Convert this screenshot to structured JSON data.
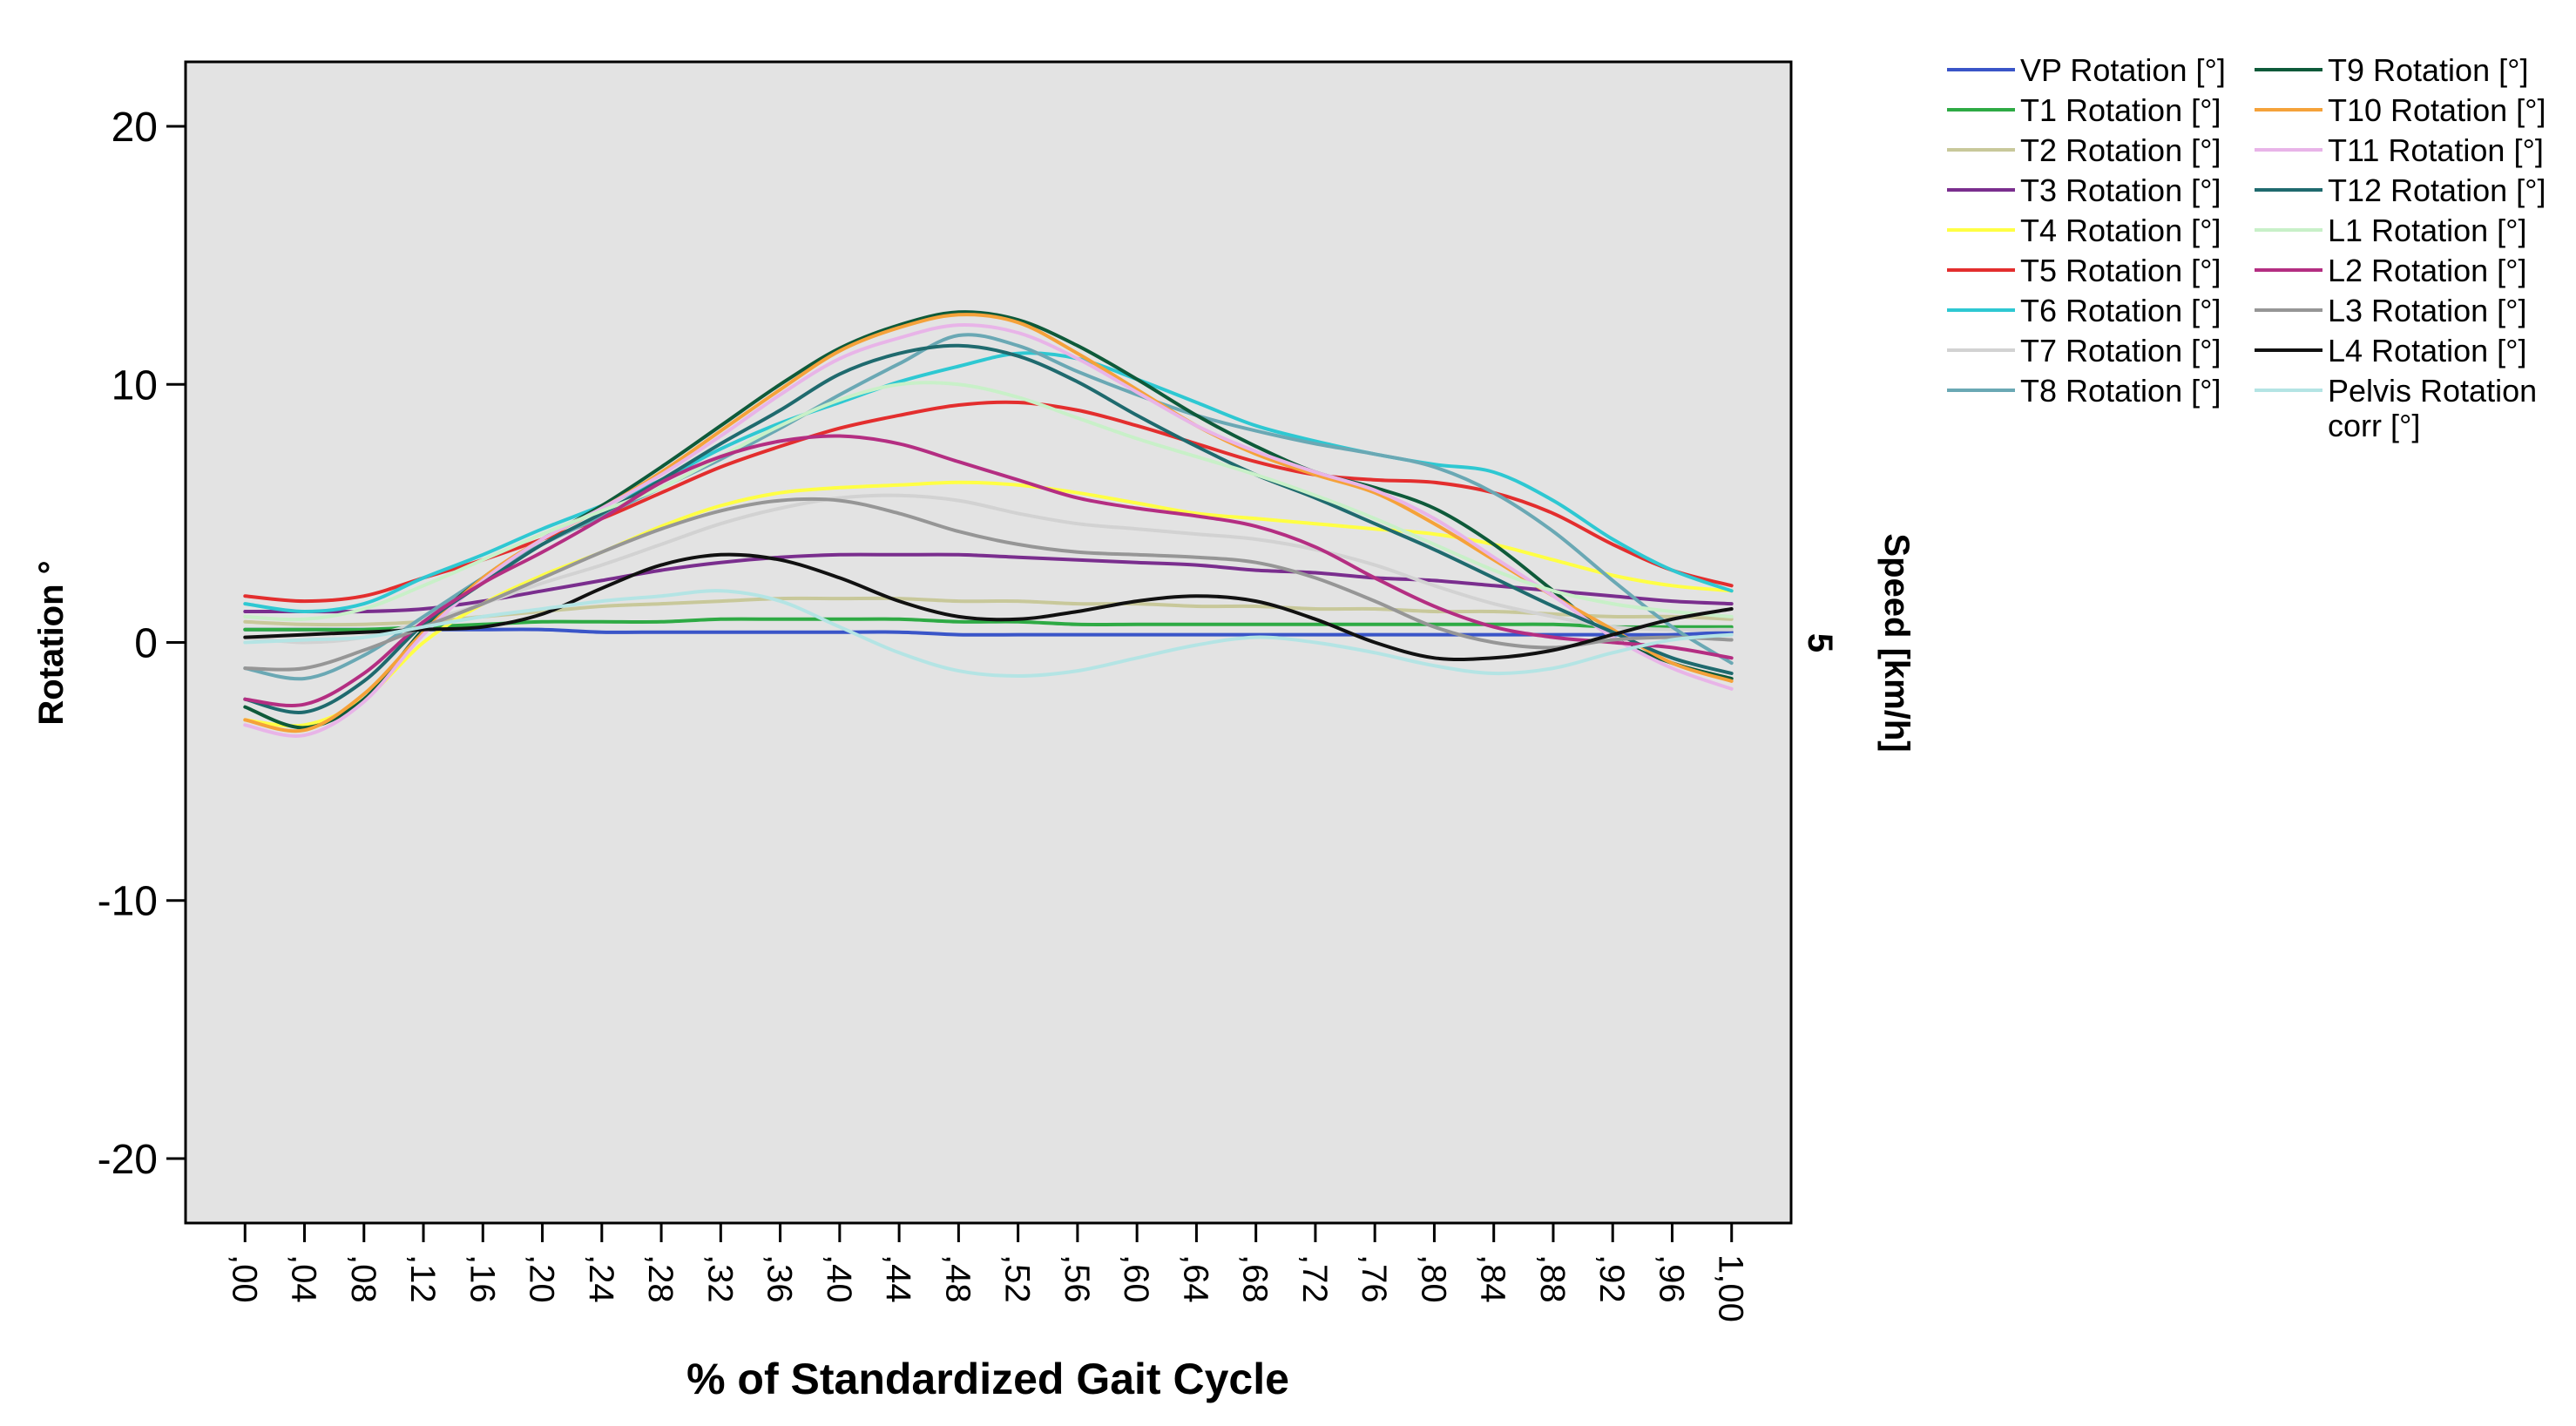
{
  "chart_data": {
    "type": "line",
    "title": "",
    "xlabel": "% of Standardized Gait Cycle",
    "ylabel": "Rotation °",
    "right_label": "Speed [km/h]",
    "right_value": "5",
    "xlim": [
      -0.04,
      1.04
    ],
    "ylim": [
      -22.5,
      22.5
    ],
    "yticks": [
      20,
      10,
      0,
      -10,
      -20
    ],
    "ytick_labels": [
      "20",
      "10",
      "0",
      "-10",
      "-20"
    ],
    "xticks": [
      0,
      0.04,
      0.08,
      0.12,
      0.16,
      0.2,
      0.24,
      0.28,
      0.32,
      0.36,
      0.4,
      0.44,
      0.48,
      0.52,
      0.56,
      0.6,
      0.64,
      0.68,
      0.72,
      0.76,
      0.8,
      0.84,
      0.88,
      0.92,
      0.96,
      1.0
    ],
    "xtick_labels": [
      ",00",
      ",04",
      ",08",
      ",12",
      ",16",
      ",20",
      ",24",
      ",28",
      ",32",
      ",36",
      ",40",
      ",44",
      ",48",
      ",52",
      ",56",
      ",60",
      ",64",
      ",68",
      ",72",
      ",76",
      ",80",
      ",84",
      ",88",
      ",92",
      ",96",
      "1,00"
    ],
    "plot_background": "#e3e3e3",
    "grid": false,
    "legend_position": "right",
    "x": [
      0,
      0.04,
      0.08,
      0.12,
      0.16,
      0.2,
      0.24,
      0.28,
      0.32,
      0.36,
      0.4,
      0.44,
      0.48,
      0.52,
      0.56,
      0.6,
      0.64,
      0.68,
      0.72,
      0.76,
      0.8,
      0.84,
      0.88,
      0.92,
      0.96,
      1.0
    ],
    "series": [
      {
        "name": "VP Rotation [°]",
        "color": "#3a55c8",
        "values": [
          0.5,
          0.5,
          0.5,
          0.5,
          0.5,
          0.5,
          0.4,
          0.4,
          0.4,
          0.4,
          0.4,
          0.4,
          0.3,
          0.3,
          0.3,
          0.3,
          0.3,
          0.3,
          0.3,
          0.3,
          0.3,
          0.3,
          0.3,
          0.3,
          0.3,
          0.4
        ]
      },
      {
        "name": "T1 Rotation [°]",
        "color": "#2eaa44",
        "values": [
          0.5,
          0.5,
          0.5,
          0.6,
          0.7,
          0.8,
          0.8,
          0.8,
          0.9,
          0.9,
          0.9,
          0.9,
          0.8,
          0.8,
          0.7,
          0.7,
          0.7,
          0.7,
          0.7,
          0.7,
          0.7,
          0.7,
          0.7,
          0.6,
          0.6,
          0.6
        ]
      },
      {
        "name": "T2 Rotation [°]",
        "color": "#c8c89a",
        "values": [
          0.8,
          0.7,
          0.7,
          0.8,
          1.0,
          1.2,
          1.4,
          1.5,
          1.6,
          1.7,
          1.7,
          1.7,
          1.6,
          1.6,
          1.5,
          1.5,
          1.4,
          1.4,
          1.3,
          1.3,
          1.2,
          1.2,
          1.1,
          1.0,
          1.0,
          0.9
        ]
      },
      {
        "name": "T3 Rotation [°]",
        "color": "#7a2e8e",
        "values": [
          1.2,
          1.2,
          1.2,
          1.3,
          1.6,
          2.0,
          2.4,
          2.8,
          3.1,
          3.3,
          3.4,
          3.4,
          3.4,
          3.3,
          3.2,
          3.1,
          3.0,
          2.8,
          2.7,
          2.5,
          2.4,
          2.2,
          2.0,
          1.8,
          1.6,
          1.5
        ]
      },
      {
        "name": "T4 Rotation [°]",
        "color": "#ffff44",
        "values": [
          -3.0,
          -3.2,
          -2.2,
          0.0,
          1.5,
          2.6,
          3.5,
          4.5,
          5.3,
          5.8,
          6.0,
          6.1,
          6.2,
          6.1,
          5.8,
          5.4,
          5.0,
          4.8,
          4.6,
          4.4,
          4.2,
          3.8,
          3.2,
          2.6,
          2.2,
          2.0
        ]
      },
      {
        "name": "T5 Rotation [°]",
        "color": "#e32e2e",
        "values": [
          1.8,
          1.6,
          1.8,
          2.5,
          3.2,
          4.0,
          4.8,
          5.8,
          6.8,
          7.6,
          8.3,
          8.8,
          9.2,
          9.3,
          9.0,
          8.4,
          7.7,
          7.0,
          6.5,
          6.3,
          6.2,
          5.8,
          5.0,
          3.8,
          2.8,
          2.2
        ]
      },
      {
        "name": "T6 Rotation [°]",
        "color": "#2ec8d2",
        "values": [
          1.5,
          1.2,
          1.5,
          2.5,
          3.4,
          4.4,
          5.3,
          6.3,
          7.5,
          8.5,
          9.3,
          10.1,
          10.7,
          11.2,
          11.0,
          10.2,
          9.3,
          8.4,
          7.8,
          7.3,
          6.9,
          6.6,
          5.5,
          4.0,
          2.8,
          2.0
        ]
      },
      {
        "name": "T7 Rotation [°]",
        "color": "#d2d2d2",
        "values": [
          0.2,
          0.0,
          0.2,
          0.8,
          1.5,
          2.3,
          3.0,
          3.8,
          4.6,
          5.2,
          5.6,
          5.7,
          5.5,
          5.0,
          4.6,
          4.4,
          4.2,
          4.0,
          3.6,
          3.0,
          2.2,
          1.5,
          1.0,
          0.6,
          0.5,
          0.5
        ]
      },
      {
        "name": "T8 Rotation [°]",
        "color": "#6aa8b4",
        "values": [
          -1.0,
          -1.4,
          -0.5,
          1.0,
          2.5,
          3.8,
          4.9,
          6.0,
          7.1,
          8.3,
          9.6,
          10.8,
          11.9,
          11.5,
          10.5,
          9.6,
          8.8,
          8.2,
          7.7,
          7.3,
          6.8,
          5.8,
          4.3,
          2.4,
          0.6,
          -0.8
        ]
      },
      {
        "name": "T9 Rotation [°]",
        "color": "#0e5a3a",
        "values": [
          -2.5,
          -3.3,
          -2.2,
          0.5,
          2.5,
          4.0,
          5.3,
          6.8,
          8.4,
          10.0,
          11.4,
          12.3,
          12.8,
          12.5,
          11.5,
          10.2,
          8.8,
          7.6,
          6.6,
          6.0,
          5.2,
          3.8,
          2.0,
          0.2,
          -0.8,
          -1.4
        ]
      },
      {
        "name": "T10 Rotation [°]",
        "color": "#f5a23a",
        "values": [
          -3.0,
          -3.4,
          -2.0,
          0.4,
          2.5,
          4.0,
          5.2,
          6.6,
          8.2,
          9.8,
          11.3,
          12.2,
          12.7,
          12.4,
          11.2,
          9.8,
          8.4,
          7.3,
          6.5,
          5.8,
          4.6,
          3.2,
          1.8,
          0.5,
          -0.8,
          -1.5
        ]
      },
      {
        "name": "T11 Rotation [°]",
        "color": "#e8b4e8",
        "values": [
          -3.2,
          -3.6,
          -2.3,
          0.3,
          2.4,
          4.0,
          5.2,
          6.5,
          8.0,
          9.6,
          11.0,
          11.8,
          12.3,
          12.0,
          11.0,
          9.7,
          8.4,
          7.4,
          6.6,
          5.9,
          4.8,
          3.3,
          1.8,
          0.2,
          -1.0,
          -1.8
        ]
      },
      {
        "name": "T12 Rotation [°]",
        "color": "#1f6a6e",
        "values": [
          -2.2,
          -2.7,
          -1.5,
          0.7,
          2.3,
          3.8,
          5.0,
          6.3,
          7.7,
          9.0,
          10.4,
          11.2,
          11.5,
          11.1,
          10.1,
          8.8,
          7.6,
          6.5,
          5.6,
          4.6,
          3.6,
          2.5,
          1.4,
          0.4,
          -0.6,
          -1.2
        ]
      },
      {
        "name": "L1 Rotation [°]",
        "color": "#c8f0c8",
        "values": [
          1.0,
          0.9,
          1.3,
          2.2,
          3.2,
          4.2,
          5.1,
          6.0,
          7.2,
          8.4,
          9.4,
          10.0,
          10.0,
          9.5,
          8.7,
          7.9,
          7.2,
          6.5,
          5.7,
          4.8,
          3.8,
          2.8,
          2.0,
          1.5,
          1.2,
          1.0
        ]
      },
      {
        "name": "L2 Rotation [°]",
        "color": "#b42e82",
        "values": [
          -2.2,
          -2.4,
          -1.2,
          0.8,
          2.3,
          3.5,
          4.8,
          6.2,
          7.2,
          7.8,
          8.0,
          7.7,
          7.0,
          6.3,
          5.6,
          5.2,
          4.9,
          4.5,
          3.7,
          2.5,
          1.4,
          0.6,
          0.2,
          0.0,
          -0.2,
          -0.6
        ]
      },
      {
        "name": "L3 Rotation [°]",
        "color": "#969696",
        "values": [
          -1.0,
          -1.0,
          -0.3,
          0.6,
          1.5,
          2.5,
          3.5,
          4.4,
          5.1,
          5.5,
          5.5,
          5.0,
          4.3,
          3.8,
          3.5,
          3.4,
          3.3,
          3.1,
          2.5,
          1.6,
          0.6,
          0.0,
          -0.2,
          0.1,
          0.2,
          0.1
        ]
      },
      {
        "name": "L4 Rotation [°]",
        "color": "#111111",
        "values": [
          0.2,
          0.3,
          0.4,
          0.5,
          0.6,
          1.1,
          2.1,
          3.0,
          3.4,
          3.2,
          2.5,
          1.6,
          1.0,
          0.9,
          1.2,
          1.6,
          1.8,
          1.6,
          0.9,
          0.0,
          -0.6,
          -0.6,
          -0.3,
          0.3,
          0.9,
          1.3
        ]
      },
      {
        "name": "Pelvis Rotation corr [°]",
        "color": "#b4e4e4",
        "values": [
          0.0,
          0.1,
          0.2,
          0.6,
          1.0,
          1.3,
          1.6,
          1.8,
          2.0,
          1.6,
          0.6,
          -0.4,
          -1.1,
          -1.3,
          -1.1,
          -0.6,
          -0.1,
          0.2,
          0.0,
          -0.4,
          -0.9,
          -1.2,
          -1.0,
          -0.4,
          0.1,
          0.3
        ]
      }
    ]
  }
}
